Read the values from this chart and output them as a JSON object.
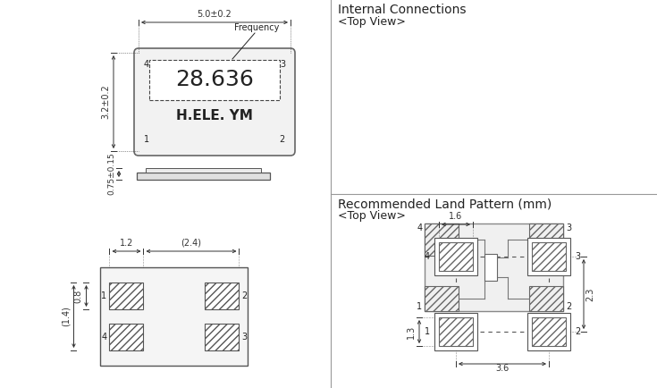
{
  "bg_color": "#ffffff",
  "line_color": "#555555",
  "text_color": "#222222",
  "title1": "Internal Connections",
  "subtitle1": "<Top View>",
  "title2": "Recommended Land Pattern (mm)",
  "subtitle2": "<Top View>",
  "freq_label": "28.636",
  "brand_label": "H.ELE. YM",
  "freq_annotation": "Frequency",
  "dim_top": "5.0±0.2",
  "dim_left": "3.2±0.2",
  "dim_height": "0.75±0.15",
  "dim_bot_w1": "1.2",
  "dim_bot_w2": "(2.4)",
  "dim_bot_h1": "0.8",
  "dim_bot_h2": "(1.4)",
  "dim_lp_w": "1.6",
  "dim_lp_h": "2.3",
  "dim_lp_center": "3.6",
  "dim_lp_side": "1.3"
}
